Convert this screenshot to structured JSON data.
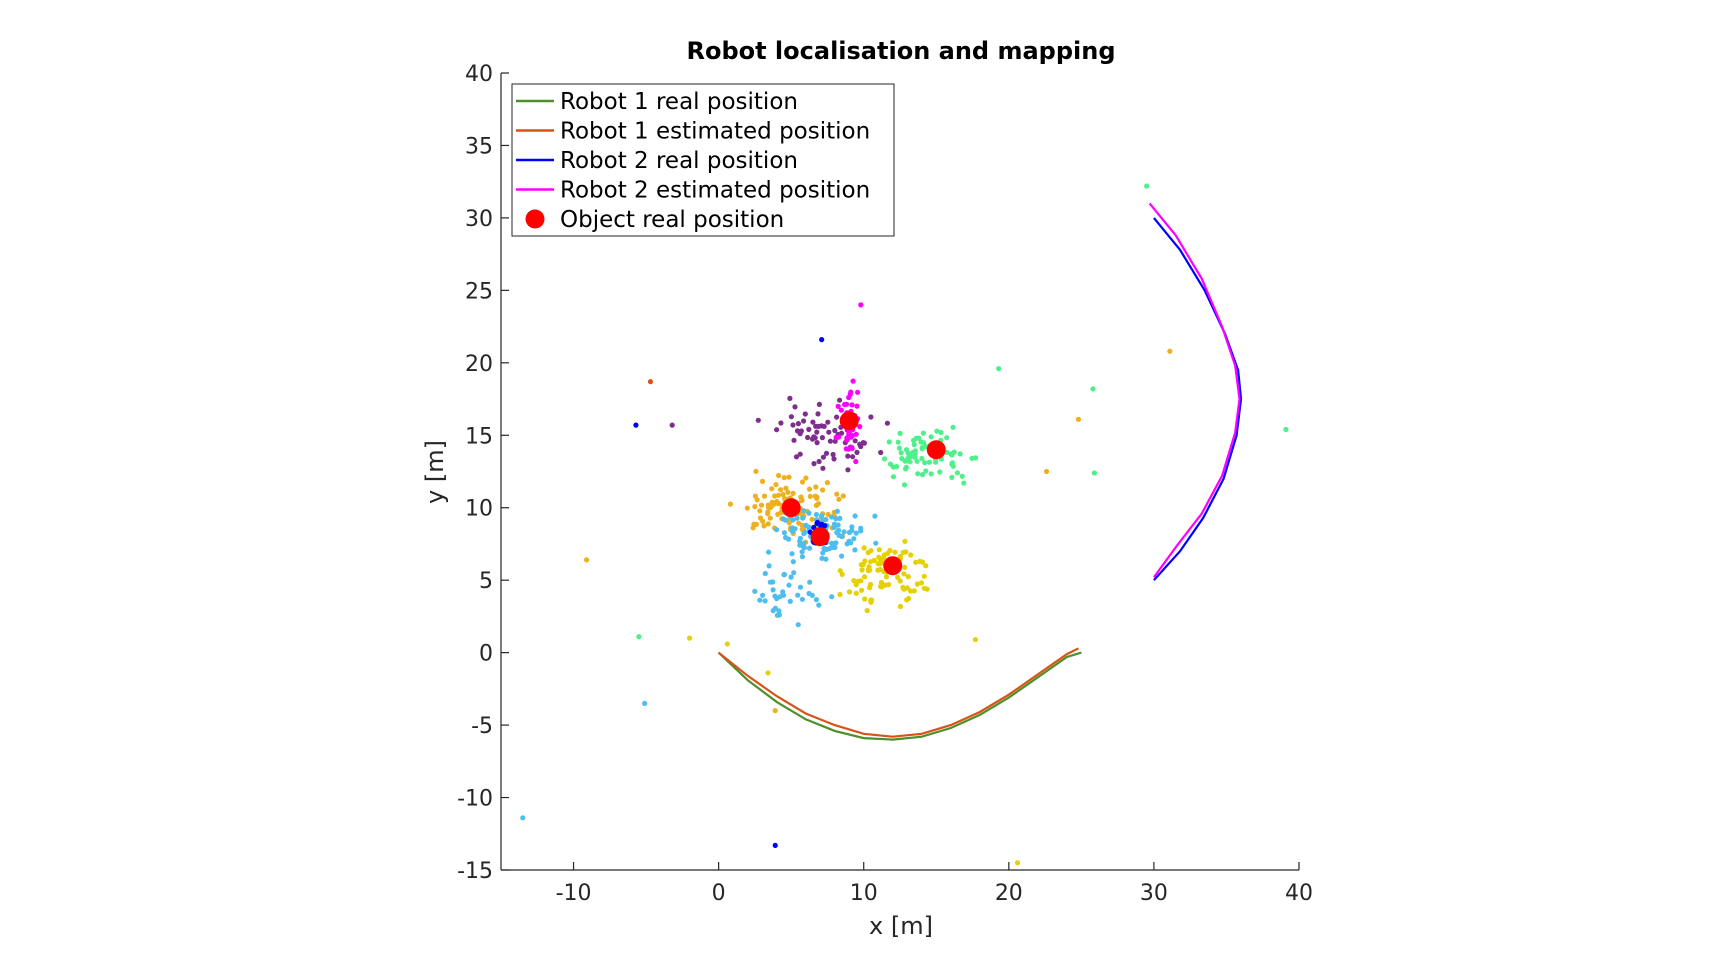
{
  "chart_data": {
    "type": "line",
    "title": "Robot localisation and mapping",
    "xlabel": "x [m]",
    "ylabel": "y [m]",
    "xlim": [
      -15,
      40
    ],
    "ylim": [
      -15,
      40
    ],
    "xticks": [
      -10,
      0,
      10,
      20,
      30,
      40
    ],
    "yticks": [
      -15,
      -10,
      -5,
      0,
      5,
      10,
      15,
      20,
      25,
      30,
      35,
      40
    ],
    "grid": false,
    "legend_location": "top-left",
    "colors": {
      "robot1_real": "#4d8f2a",
      "robot1_est": "#d95319",
      "robot2_real": "#0000ff",
      "robot2_est": "#ff00ff",
      "object": "#ff0000"
    },
    "series": [
      {
        "name": "Robot 1 real position",
        "color": "#4d8f2a",
        "x": [
          0,
          2,
          4,
          6,
          8,
          10,
          12,
          14,
          16,
          18,
          20,
          22,
          24,
          25
        ],
        "y": [
          0,
          -1.9,
          -3.4,
          -4.6,
          -5.4,
          -5.9,
          -6,
          -5.8,
          -5.2,
          -4.3,
          -3.1,
          -1.7,
          -0.3,
          0
        ]
      },
      {
        "name": "Robot 1 estimated position",
        "color": "#d95319",
        "x": [
          0,
          2,
          4,
          6,
          8,
          10,
          12,
          14,
          16,
          18,
          20,
          22,
          24,
          24.8
        ],
        "y": [
          0,
          -1.6,
          -3.0,
          -4.2,
          -5.0,
          -5.6,
          -5.8,
          -5.6,
          -5.0,
          -4.1,
          -2.9,
          -1.5,
          -0.1,
          0.3
        ]
      },
      {
        "name": "Robot 2 real position",
        "color": "#0000ff",
        "x": [
          30,
          31.8,
          33.5,
          34.9,
          35.8,
          36,
          35.7,
          34.8,
          33.4,
          31.8,
          30
        ],
        "y": [
          30,
          27.8,
          25,
          22,
          19.5,
          17.5,
          15,
          12,
          9.3,
          7.0,
          5
        ]
      },
      {
        "name": "Robot 2 estimated position",
        "color": "#ff00ff",
        "x": [
          29.7,
          31.5,
          33.3,
          34.7,
          35.6,
          35.9,
          35.6,
          34.7,
          33.3,
          31.6,
          30
        ],
        "y": [
          31,
          28.8,
          25.8,
          22.5,
          19.8,
          17.5,
          15.2,
          12.2,
          9.6,
          7.4,
          5.2
        ]
      }
    ],
    "objects": {
      "name": "Object real position",
      "color": "#ff0000",
      "x": [
        9,
        15,
        5,
        7,
        12
      ],
      "y": [
        16,
        14,
        10,
        8,
        6
      ]
    },
    "estimate_clusters": [
      {
        "color": "#7e2f8e",
        "center": [
          7.5,
          15.0
        ],
        "spread": [
          2.6,
          1.6
        ],
        "count": 70
      },
      {
        "color": "#ff00ff",
        "center": [
          9.0,
          16.0
        ],
        "spread": [
          0.5,
          1.6
        ],
        "count": 45
      },
      {
        "color": "#4ef08a",
        "center": [
          14.5,
          13.5
        ],
        "spread": [
          2.2,
          1.2
        ],
        "count": 75
      },
      {
        "color": "#edb120",
        "center": [
          5.0,
          10.0
        ],
        "spread": [
          2.4,
          1.4
        ],
        "count": 110
      },
      {
        "color": "#4dbeee",
        "center": [
          7.0,
          8.0
        ],
        "spread": [
          2.2,
          1.3
        ],
        "count": 95
      },
      {
        "color": "#0000ff",
        "center": [
          6.8,
          8.3
        ],
        "spread": [
          0.5,
          0.7
        ],
        "count": 20
      },
      {
        "color": "#e5d000",
        "center": [
          11.5,
          5.5
        ],
        "spread": [
          1.8,
          1.6
        ],
        "count": 90
      },
      {
        "color": "#4dbeee",
        "center": [
          5.0,
          4.0
        ],
        "spread": [
          1.8,
          1.6
        ],
        "count": 35
      }
    ],
    "outliers": [
      {
        "x": 29.5,
        "y": 32.2,
        "color": "#4ef08a"
      },
      {
        "x": 31.1,
        "y": 20.8,
        "color": "#edb120"
      },
      {
        "x": 39.1,
        "y": 15.4,
        "color": "#4ef08a"
      },
      {
        "x": 25.9,
        "y": 12.4,
        "color": "#4ef08a"
      },
      {
        "x": 25.8,
        "y": 18.2,
        "color": "#4ef08a"
      },
      {
        "x": 19.3,
        "y": 19.6,
        "color": "#4ef08a"
      },
      {
        "x": 22.6,
        "y": 12.5,
        "color": "#edb120"
      },
      {
        "x": 24.8,
        "y": 16.1,
        "color": "#edb120"
      },
      {
        "x": 9.8,
        "y": 24.0,
        "color": "#ff00ff"
      },
      {
        "x": 7.1,
        "y": 21.6,
        "color": "#0000ff"
      },
      {
        "x": -4.7,
        "y": 18.7,
        "color": "#d95319"
      },
      {
        "x": -5.7,
        "y": 15.7,
        "color": "#0000ff"
      },
      {
        "x": -3.2,
        "y": 15.7,
        "color": "#7e2f8e"
      },
      {
        "x": -9.1,
        "y": 6.4,
        "color": "#edb120"
      },
      {
        "x": -5.5,
        "y": 1.1,
        "color": "#4ef08a"
      },
      {
        "x": -5.1,
        "y": -3.5,
        "color": "#4dbeee"
      },
      {
        "x": -13.5,
        "y": -11.4,
        "color": "#4dbeee"
      },
      {
        "x": 3.9,
        "y": -13.3,
        "color": "#0000ff"
      },
      {
        "x": 20.6,
        "y": -14.5,
        "color": "#e5d000"
      },
      {
        "x": 3.4,
        "y": -1.4,
        "color": "#e5d000"
      },
      {
        "x": 3.9,
        "y": -4.0,
        "color": "#edb120"
      },
      {
        "x": 17.7,
        "y": 0.9,
        "color": "#e5d000"
      },
      {
        "x": 0.6,
        "y": 0.6,
        "color": "#e5d000"
      },
      {
        "x": -2.0,
        "y": 1.0,
        "color": "#e5d000"
      }
    ]
  }
}
